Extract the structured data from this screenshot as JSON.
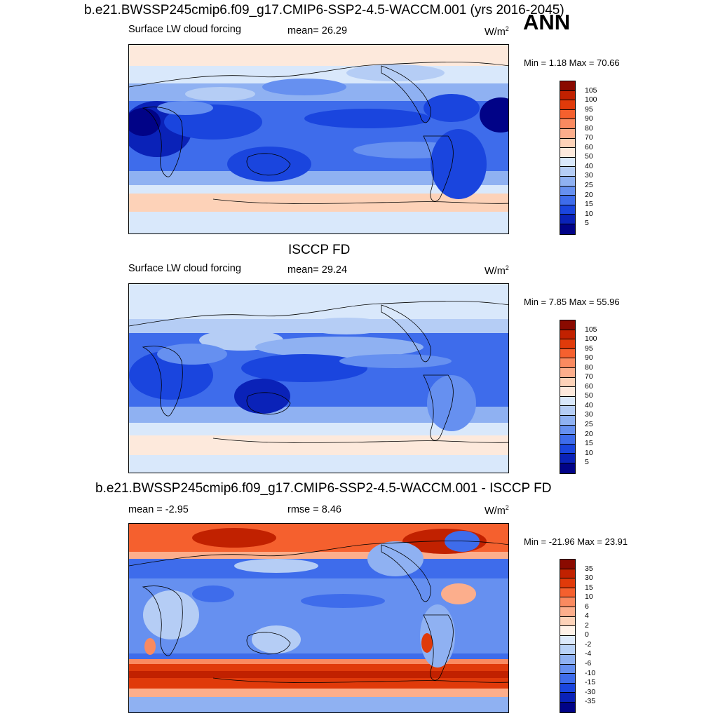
{
  "ann_label": "ANN",
  "panels": [
    {
      "title": "b.e21.BWSSP245cmip6.f09_g17.CMIP6-SSP2-4.5-WACCM.001 (yrs 2016-2045)",
      "left_label": "Surface LW cloud forcing",
      "center_label": "mean=  26.29",
      "units": "W/m",
      "units_sup": "2",
      "minmax": "Min =   1.18 Max =  70.66",
      "colorbar_labels": [
        "105",
        "100",
        "95",
        "90",
        "80",
        "70",
        "60",
        "50",
        "40",
        "30",
        "25",
        "20",
        "15",
        "10",
        "5"
      ],
      "colorbar_colors": [
        "#8a0a00",
        "#c12100",
        "#e03a0a",
        "#f5602e",
        "#fa8a60",
        "#fcae8c",
        "#fdd2b8",
        "#fde9dc",
        "#d9e8fb",
        "#b5cdf5",
        "#8fb1f2",
        "#6690f0",
        "#3e6ceb",
        "#1a45de",
        "#0a22b8",
        "#010387"
      ]
    },
    {
      "title": "ISCCP FD",
      "left_label": "Surface LW cloud forcing",
      "center_label": "mean=  29.24",
      "units": "W/m",
      "units_sup": "2",
      "minmax": "Min =   7.85 Max =  55.96",
      "colorbar_labels": [
        "105",
        "100",
        "95",
        "90",
        "80",
        "70",
        "60",
        "50",
        "40",
        "30",
        "25",
        "20",
        "15",
        "10",
        "5"
      ],
      "colorbar_colors": [
        "#8a0a00",
        "#c12100",
        "#e03a0a",
        "#f5602e",
        "#fa8a60",
        "#fcae8c",
        "#fdd2b8",
        "#fde9dc",
        "#d9e8fb",
        "#b5cdf5",
        "#8fb1f2",
        "#6690f0",
        "#3e6ceb",
        "#1a45de",
        "#0a22b8",
        "#010387"
      ]
    },
    {
      "title": "b.e21.BWSSP245cmip6.f09_g17.CMIP6-SSP2-4.5-WACCM.001 - ISCCP FD",
      "left_label": "mean =  -2.95",
      "center_label": "rmse =   8.46",
      "units": "W/m",
      "units_sup": "2",
      "minmax": "Min = -21.96 Max =  23.91",
      "colorbar_labels": [
        "35",
        "30",
        "15",
        "10",
        "6",
        "4",
        "2",
        "0",
        "-2",
        "-4",
        "-6",
        "-10",
        "-15",
        "-30",
        "-35"
      ],
      "colorbar_colors": [
        "#8a0a00",
        "#c12100",
        "#e03a0a",
        "#f5602e",
        "#fa8a60",
        "#fcae8c",
        "#fdd2b8",
        "#fff2e8",
        "#ddeafc",
        "#b9d2f8",
        "#8fb1f2",
        "#6690f0",
        "#3e6ceb",
        "#1a45de",
        "#0a22b8",
        "#010387"
      ]
    }
  ]
}
